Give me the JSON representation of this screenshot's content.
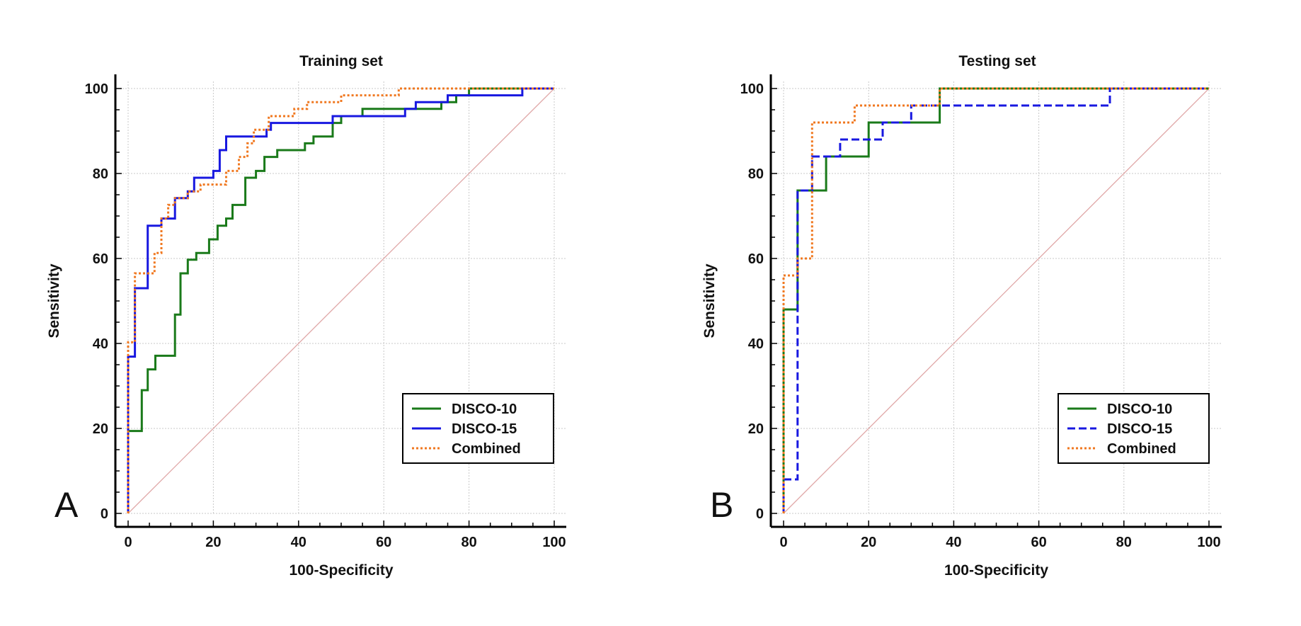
{
  "chart_data": [
    {
      "type": "line",
      "panel_label": "A",
      "title": "Training set",
      "xlabel": "100-Specificity",
      "ylabel": "Sensitivity",
      "xlim": [
        0,
        100
      ],
      "ylim": [
        0,
        100
      ],
      "xticks": [
        "0",
        "20",
        "40",
        "60",
        "80",
        "100"
      ],
      "yticks": [
        "0",
        "20",
        "40",
        "60",
        "80",
        "100"
      ],
      "grid": true,
      "legend_position": "bottom-right",
      "reference_line": {
        "x": [
          0,
          100
        ],
        "y": [
          0,
          100
        ],
        "color": "#e0a8a8"
      },
      "series": [
        {
          "name": "DISCO-10",
          "color": "#1a7a1a",
          "dash": "solid",
          "x": [
            0,
            0,
            0.7,
            0.7,
            3.2,
            3.2,
            4.6,
            4.6,
            6.4,
            6.4,
            11,
            11,
            12.3,
            12.3,
            14,
            14,
            16,
            16,
            19,
            19,
            21,
            21,
            23,
            23,
            24.5,
            24.5,
            27.5,
            27.5,
            30,
            30,
            32,
            32,
            35,
            35,
            41.5,
            41.5,
            43.5,
            43.5,
            48,
            48,
            50,
            50,
            55,
            55,
            73.5,
            73.5,
            77,
            77,
            80,
            80,
            100
          ],
          "y": [
            0,
            19.4,
            19.4,
            19.4,
            19.4,
            29,
            29,
            33.9,
            33.9,
            37.1,
            37.1,
            46.8,
            46.8,
            56.5,
            56.5,
            59.7,
            59.7,
            61.3,
            61.3,
            64.5,
            64.5,
            67.7,
            67.7,
            69.4,
            69.4,
            72.6,
            72.6,
            79,
            79,
            80.6,
            80.6,
            83.9,
            83.9,
            85.5,
            85.5,
            87.1,
            87.1,
            88.7,
            88.7,
            91.9,
            91.9,
            93.5,
            93.5,
            95.2,
            95.2,
            96.8,
            96.8,
            98.4,
            98.4,
            100,
            100
          ]
        },
        {
          "name": "DISCO-15",
          "color": "#1818e0",
          "dash": "solid",
          "x": [
            0,
            0,
            1.6,
            1.6,
            4.6,
            4.6,
            7.8,
            7.8,
            11,
            11,
            14,
            14,
            15.5,
            15.5,
            20,
            20,
            21.5,
            21.5,
            23,
            23,
            32.5,
            32.5,
            33.5,
            33.5,
            48,
            48,
            65,
            65,
            67.5,
            67.5,
            75,
            75,
            92.5,
            92.5,
            100
          ],
          "y": [
            0,
            36.9,
            36.9,
            53,
            53,
            67.7,
            67.7,
            69.4,
            69.4,
            74.2,
            74.2,
            75.8,
            75.8,
            79,
            79,
            80.6,
            80.6,
            85.5,
            85.5,
            88.7,
            88.7,
            90.3,
            90.3,
            91.9,
            91.9,
            93.5,
            93.5,
            95.2,
            95.2,
            96.8,
            96.8,
            98.4,
            98.4,
            100,
            100
          ]
        },
        {
          "name": "Combined",
          "color": "#f07820",
          "dash": "dotted",
          "x": [
            0,
            0,
            1.6,
            1.6,
            6.2,
            6.2,
            7.8,
            7.8,
            9.4,
            9.4,
            11,
            11,
            14,
            14,
            17,
            17,
            23,
            23,
            26,
            26,
            28,
            28,
            29.5,
            29.5,
            33,
            33,
            39,
            39,
            42,
            42,
            47,
            47,
            50,
            50,
            54.5,
            54.5,
            63.5,
            63.5,
            100
          ],
          "y": [
            0,
            40.3,
            40.3,
            56.5,
            56.5,
            61.3,
            61.3,
            69.4,
            69.4,
            72.6,
            72.6,
            74.2,
            74.2,
            75.8,
            75.8,
            77.4,
            77.4,
            80.6,
            80.6,
            83.9,
            83.9,
            87.1,
            87.1,
            90.3,
            90.3,
            93.5,
            93.5,
            95.2,
            95.2,
            96.8,
            96.8,
            96.8,
            96.8,
            98.4,
            98.4,
            98.4,
            98.4,
            100,
            100
          ]
        }
      ]
    },
    {
      "type": "line",
      "panel_label": "B",
      "title": "Testing set",
      "xlabel": "100-Specificity",
      "ylabel": "Sensitivity",
      "xlim": [
        0,
        100
      ],
      "ylim": [
        0,
        100
      ],
      "xticks": [
        "0",
        "20",
        "40",
        "60",
        "80",
        "100"
      ],
      "yticks": [
        "0",
        "20",
        "40",
        "60",
        "80",
        "100"
      ],
      "grid": true,
      "legend_position": "bottom-right",
      "reference_line": {
        "x": [
          0,
          100
        ],
        "y": [
          0,
          100
        ],
        "color": "#e0a8a8"
      },
      "series": [
        {
          "name": "DISCO-10",
          "color": "#1a7a1a",
          "dash": "solid",
          "x": [
            0,
            0,
            3.3,
            3.3,
            10,
            10,
            20,
            20,
            36.7,
            36.7,
            100
          ],
          "y": [
            0,
            48,
            48,
            76,
            76,
            84,
            84,
            92,
            92,
            100,
            100
          ]
        },
        {
          "name": "DISCO-15",
          "color": "#1818e0",
          "dash": "dashed",
          "x": [
            0,
            0,
            3.3,
            3.3,
            6.7,
            6.7,
            13.3,
            13.3,
            23.3,
            23.3,
            30,
            30,
            76.7,
            76.7,
            100
          ],
          "y": [
            0,
            8,
            8,
            76,
            76,
            84,
            84,
            88,
            88,
            92,
            92,
            96,
            96,
            100,
            100
          ]
        },
        {
          "name": "Combined",
          "color": "#f07820",
          "dash": "dotted",
          "x": [
            0,
            0,
            3.3,
            3.3,
            6.7,
            6.7,
            16.7,
            16.7,
            36.7,
            36.7,
            100
          ],
          "y": [
            0,
            56,
            56,
            60,
            60,
            92,
            92,
            96,
            96,
            100,
            100
          ]
        }
      ]
    }
  ]
}
